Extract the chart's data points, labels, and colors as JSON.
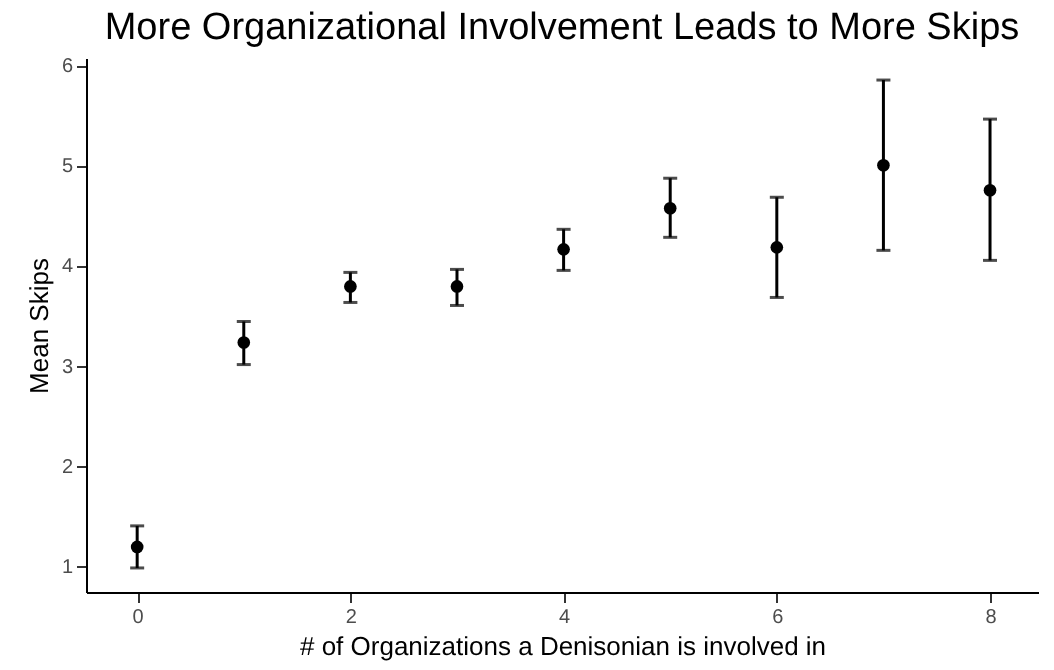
{
  "chart_data": {
    "type": "scatter",
    "title": "More Organizational Involvement Leads to More Skips",
    "xlabel": "# of Organizations a Denisonian is involved in",
    "ylabel": "Mean Skips",
    "x": [
      0,
      1,
      2,
      3,
      4,
      5,
      6,
      7,
      8
    ],
    "values": [
      1.19,
      3.23,
      3.79,
      3.79,
      4.16,
      4.57,
      4.18,
      5.0,
      4.75
    ],
    "errors": [
      [
        0.98,
        1.4
      ],
      [
        3.01,
        3.44
      ],
      [
        3.63,
        3.93
      ],
      [
        3.6,
        3.96
      ],
      [
        3.95,
        4.36
      ],
      [
        4.28,
        4.87
      ],
      [
        3.68,
        4.68
      ],
      [
        4.15,
        5.85
      ],
      [
        4.05,
        5.46
      ]
    ],
    "color": "#000000",
    "marker": "circle",
    "grid": false,
    "xlim": [
      -0.48,
      8.45
    ],
    "ylim": [
      0.74,
      6.07
    ],
    "xticks": [
      0,
      2,
      4,
      6,
      8
    ],
    "yticks": [
      1,
      2,
      3,
      4,
      5,
      6
    ]
  }
}
